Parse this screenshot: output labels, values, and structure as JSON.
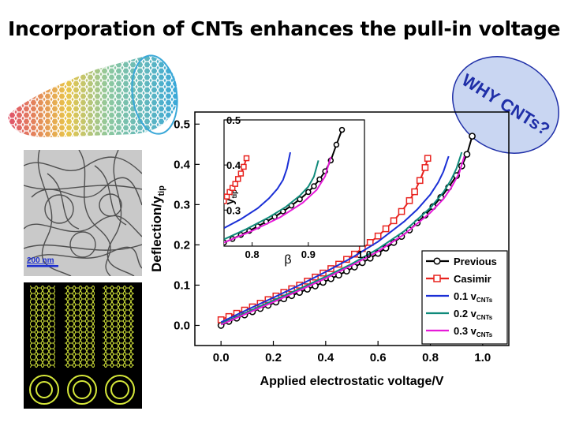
{
  "slide": {
    "title": "Incorporation of CNTs enhances the pull-in voltage",
    "callout": "WHY CNTs?",
    "scale_bar": "200 nm"
  },
  "icons": [
    "nanotube-illustration-icon",
    "tem-micrograph-icon",
    "multiwall-nanotube-icon"
  ],
  "colors": {
    "previous": "#000000",
    "casimir": "#e8231f",
    "v01": "#1a2fd6",
    "v02": "#0f8a7a",
    "v03": "#e61ad8",
    "bubble": "#c9d6f2",
    "callout_text": "#1f2fa8"
  },
  "chart_data": [
    {
      "type": "line",
      "xlabel": "Applied electrostatic voltage/V",
      "ylabel": "Deflection/y",
      "ylabel_sub": "tip",
      "xlim": [
        -0.1,
        1.1
      ],
      "ylim": [
        -0.05,
        0.53
      ],
      "xticks": [
        "0.0",
        "0.2",
        "0.4",
        "0.6",
        "0.8",
        "1.0"
      ],
      "yticks": [
        "0.0",
        "0.1",
        "0.2",
        "0.3",
        "0.4",
        "0.5"
      ],
      "legend_position": "bottom-right",
      "series": [
        {
          "name": "Previous",
          "color": "#000000",
          "marker": "circle",
          "x": [
            0.0,
            0.03,
            0.06,
            0.09,
            0.12,
            0.15,
            0.18,
            0.21,
            0.24,
            0.27,
            0.3,
            0.33,
            0.36,
            0.39,
            0.42,
            0.45,
            0.48,
            0.51,
            0.54,
            0.57,
            0.6,
            0.63,
            0.66,
            0.69,
            0.72,
            0.75,
            0.78,
            0.81,
            0.84,
            0.87,
            0.9,
            0.92,
            0.94,
            0.96
          ],
          "y": [
            0.0,
            0.01,
            0.018,
            0.026,
            0.034,
            0.042,
            0.05,
            0.058,
            0.066,
            0.074,
            0.082,
            0.09,
            0.098,
            0.107,
            0.116,
            0.125,
            0.135,
            0.145,
            0.156,
            0.167,
            0.179,
            0.192,
            0.206,
            0.221,
            0.237,
            0.255,
            0.274,
            0.295,
            0.318,
            0.343,
            0.372,
            0.396,
            0.425,
            0.47
          ]
        },
        {
          "name": "Casimir",
          "color": "#e8231f",
          "marker": "square",
          "x": [
            0.0,
            0.03,
            0.06,
            0.09,
            0.12,
            0.15,
            0.18,
            0.21,
            0.24,
            0.27,
            0.3,
            0.33,
            0.36,
            0.39,
            0.42,
            0.45,
            0.48,
            0.51,
            0.54,
            0.57,
            0.6,
            0.63,
            0.66,
            0.69,
            0.72,
            0.74,
            0.76,
            0.78,
            0.79
          ],
          "y": [
            0.014,
            0.022,
            0.03,
            0.038,
            0.046,
            0.055,
            0.064,
            0.073,
            0.082,
            0.091,
            0.1,
            0.11,
            0.12,
            0.13,
            0.141,
            0.152,
            0.164,
            0.177,
            0.191,
            0.206,
            0.222,
            0.24,
            0.26,
            0.283,
            0.31,
            0.332,
            0.36,
            0.392,
            0.415
          ]
        },
        {
          "name": "0.1 v",
          "sub": "CNTs",
          "color": "#1a2fd6",
          "marker": "none",
          "x": [
            0.0,
            0.1,
            0.2,
            0.3,
            0.4,
            0.5,
            0.6,
            0.7,
            0.75,
            0.8,
            0.83,
            0.85,
            0.87
          ],
          "y": [
            0.008,
            0.039,
            0.069,
            0.1,
            0.133,
            0.168,
            0.208,
            0.258,
            0.288,
            0.325,
            0.355,
            0.382,
            0.42
          ]
        },
        {
          "name": "0.2 v",
          "sub": "CNTs",
          "color": "#0f8a7a",
          "marker": "none",
          "x": [
            0.0,
            0.1,
            0.2,
            0.3,
            0.4,
            0.5,
            0.6,
            0.7,
            0.8,
            0.85,
            0.88,
            0.9,
            0.92
          ],
          "y": [
            0.004,
            0.033,
            0.062,
            0.091,
            0.121,
            0.153,
            0.19,
            0.234,
            0.292,
            0.331,
            0.362,
            0.39,
            0.43
          ]
        },
        {
          "name": "0.3 v",
          "sub": "CNTs",
          "color": "#e61ad8",
          "marker": "none",
          "x": [
            0.0,
            0.1,
            0.2,
            0.3,
            0.4,
            0.5,
            0.6,
            0.7,
            0.8,
            0.85,
            0.88,
            0.91,
            0.93
          ],
          "y": [
            0.002,
            0.03,
            0.058,
            0.087,
            0.117,
            0.149,
            0.184,
            0.226,
            0.28,
            0.314,
            0.342,
            0.378,
            0.42
          ]
        }
      ]
    },
    {
      "type": "line",
      "xlabel": "β",
      "ylabel": "y",
      "ylabel_sub": "tip",
      "xlim": [
        0.75,
        1.0
      ],
      "ylim": [
        0.22,
        0.5
      ],
      "xticks": [
        "0.8",
        "0.9",
        "1.0"
      ],
      "yticks": [
        "0.3",
        "0.4",
        "0.5"
      ],
      "series": [
        {
          "name": "Previous",
          "color": "#000000",
          "marker": "circle",
          "x": [
            0.75,
            0.765,
            0.78,
            0.795,
            0.81,
            0.825,
            0.84,
            0.855,
            0.87,
            0.885,
            0.9,
            0.91,
            0.92,
            0.93,
            0.94,
            0.95,
            0.96
          ],
          "y": [
            0.228,
            0.236,
            0.245,
            0.254,
            0.264,
            0.274,
            0.285,
            0.297,
            0.31,
            0.324,
            0.34,
            0.353,
            0.368,
            0.386,
            0.41,
            0.445,
            0.478
          ]
        },
        {
          "name": "Casimir",
          "color": "#e8231f",
          "marker": "square",
          "x": [
            0.75,
            0.755,
            0.76,
            0.765,
            0.77,
            0.775,
            0.78,
            0.785,
            0.79
          ],
          "y": [
            0.32,
            0.33,
            0.34,
            0.349,
            0.358,
            0.369,
            0.381,
            0.396,
            0.415
          ]
        },
        {
          "name": "0.1 v",
          "color": "#1a2fd6",
          "marker": "none",
          "x": [
            0.75,
            0.78,
            0.81,
            0.83,
            0.845,
            0.855,
            0.862,
            0.868
          ],
          "y": [
            0.26,
            0.28,
            0.304,
            0.326,
            0.347,
            0.367,
            0.392,
            0.428
          ]
        },
        {
          "name": "0.2 v",
          "color": "#0f8a7a",
          "marker": "none",
          "x": [
            0.75,
            0.79,
            0.83,
            0.86,
            0.885,
            0.9,
            0.91,
            0.918
          ],
          "y": [
            0.235,
            0.258,
            0.284,
            0.307,
            0.332,
            0.352,
            0.374,
            0.41
          ]
        },
        {
          "name": "0.3 v",
          "color": "#e61ad8",
          "marker": "none",
          "x": [
            0.75,
            0.8,
            0.85,
            0.89,
            0.915,
            0.93,
            0.94
          ],
          "y": [
            0.228,
            0.254,
            0.284,
            0.316,
            0.345,
            0.375,
            0.418
          ]
        }
      ]
    }
  ]
}
